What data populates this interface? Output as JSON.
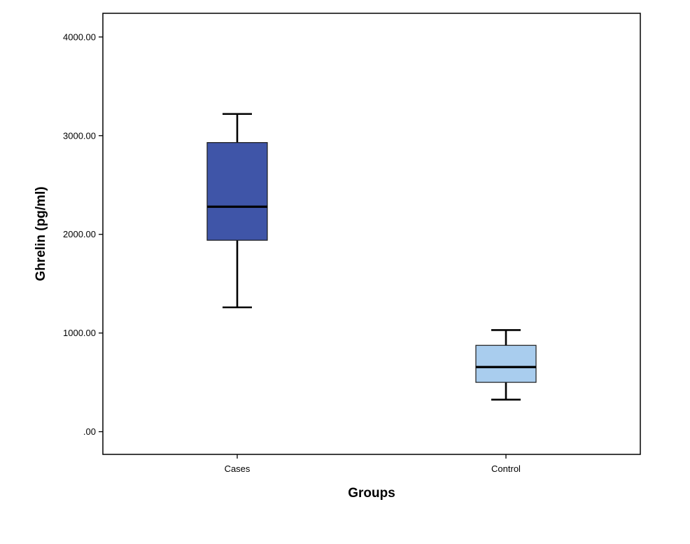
{
  "chart_data": {
    "type": "boxplot",
    "title": "",
    "xlabel": "Groups",
    "ylabel": "Ghrelin (pg/ml)",
    "ylim": [
      -230,
      4240
    ],
    "yticks": [
      {
        "value": 0,
        "label": ".00"
      },
      {
        "value": 1000,
        "label": "1000.00"
      },
      {
        "value": 2000,
        "label": "2000.00"
      },
      {
        "value": 3000,
        "label": "3000.00"
      },
      {
        "value": 4000,
        "label": "4000.00"
      }
    ],
    "grid": false,
    "categories": [
      "Cases",
      "Control"
    ],
    "boxes": [
      {
        "category": "Cases",
        "min": 1260,
        "q1": 1940,
        "median": 2280,
        "q3": 2930,
        "max": 3220,
        "color": "#3f55a8"
      },
      {
        "category": "Control",
        "min": 325,
        "q1": 500,
        "median": 655,
        "q3": 875,
        "max": 1030,
        "color": "#a9cdee"
      }
    ]
  }
}
